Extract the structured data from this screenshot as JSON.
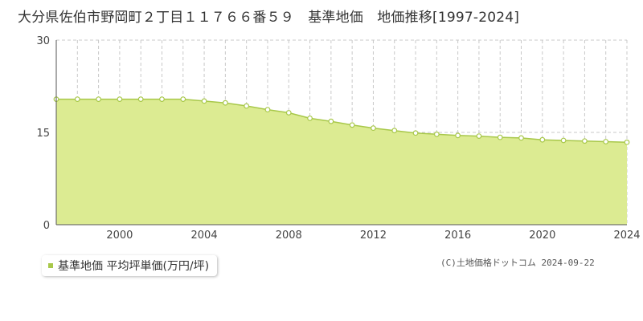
{
  "title": "大分県佐伯市野岡町２丁目１１７６６番５９　基準地価　地価推移[1997-2024]",
  "legend_label": "基準地価 平均坪単価(万円/坪)",
  "copyright": "(C)土地価格ドットコム 2024-09-22",
  "colors": {
    "area": "#dceb92",
    "line": "#a8c84a",
    "point_fill": "#ffffff",
    "grid": "#c8c8c8",
    "axis": "#555555"
  },
  "chart_data": {
    "type": "area",
    "title": "",
    "xlabel": "",
    "ylabel": "",
    "series": [
      {
        "name": "基準地価 平均坪単価(万円/坪)",
        "x": [
          1997,
          1998,
          1999,
          2000,
          2001,
          2002,
          2003,
          2004,
          2005,
          2006,
          2007,
          2008,
          2009,
          2010,
          2011,
          2012,
          2013,
          2014,
          2015,
          2016,
          2017,
          2018,
          2019,
          2020,
          2021,
          2022,
          2023,
          2024
        ],
        "values": [
          20.4,
          20.4,
          20.4,
          20.4,
          20.4,
          20.4,
          20.4,
          20.1,
          19.8,
          19.3,
          18.7,
          18.2,
          17.3,
          16.8,
          16.2,
          15.7,
          15.3,
          14.9,
          14.7,
          14.5,
          14.4,
          14.2,
          14.1,
          13.8,
          13.7,
          13.6,
          13.5,
          13.4
        ]
      }
    ],
    "xlim": [
      1997,
      2024
    ],
    "ylim": [
      0,
      30
    ],
    "x_ticks": [
      "2000",
      "2004",
      "2008",
      "2012",
      "2016",
      "2020",
      "2024"
    ],
    "y_ticks": [
      "0",
      "15",
      "30"
    ],
    "grid": true,
    "legend_position": "bottom-left"
  }
}
